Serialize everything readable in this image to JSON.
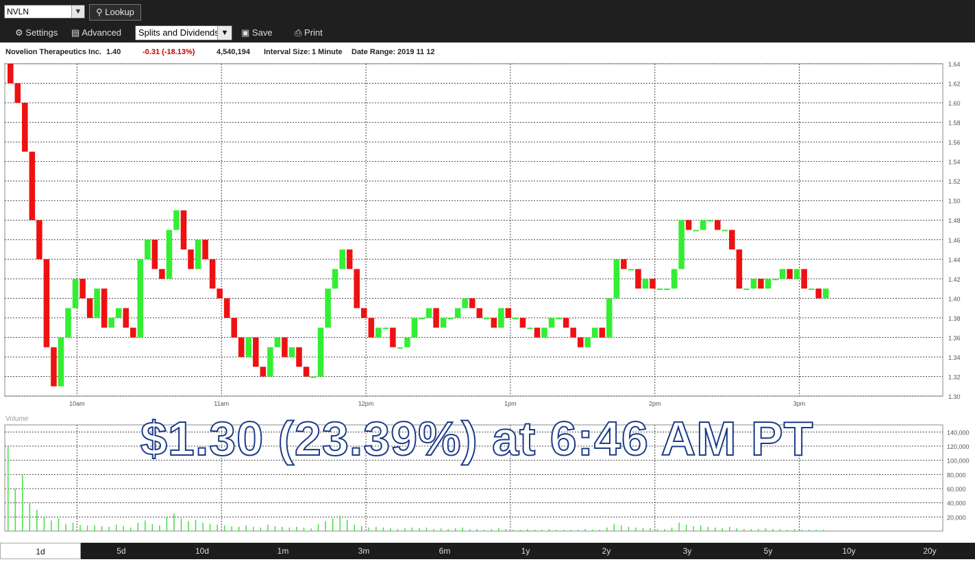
{
  "toolbar": {
    "symbol_value": "NVLN",
    "lookup_label": "Lookup",
    "settings_label": "Settings",
    "advanced_label": "Advanced",
    "splits_label": "Splits and Dividends",
    "save_label": "Save",
    "print_label": "Print"
  },
  "info": {
    "company": "Novelion Therapeutics Inc.",
    "price": "1.40",
    "change": "-0.31 (-18.13%)",
    "volume": "4,540,194",
    "interval_label": "Interval Size:",
    "interval_value": "1 Minute",
    "date_label": "Date Range:",
    "date_value": "2019 11 12"
  },
  "overlay": "$1.30 (23.39%) at 6:46 AM PT",
  "volume_label": "Volume",
  "ranges": [
    "1d",
    "5d",
    "10d",
    "1m",
    "3m",
    "6m",
    "1y",
    "2y",
    "3y",
    "5y",
    "10y",
    "20y"
  ],
  "active_range": "1d",
  "colors": {
    "up": "#33ee33",
    "down": "#ee1111",
    "grid": "#444444",
    "volume": "#44dd44"
  },
  "chart_data": {
    "type": "candlestick",
    "x_ticks": [
      "10am",
      "11am",
      "12pm",
      "1pm",
      "2pm",
      "3pm"
    ],
    "y_ticks": [
      "1.30",
      "1.32",
      "1.34",
      "1.36",
      "1.38",
      "1.40",
      "1.42",
      "1.44",
      "1.46",
      "1.48",
      "1.50",
      "1.52",
      "1.54",
      "1.56",
      "1.58",
      "1.60",
      "1.62",
      "1.64"
    ],
    "ylim": [
      1.3,
      1.64
    ],
    "volume_ticks": [
      "20,000",
      "40,000",
      "60,000",
      "80,000",
      "100,000",
      "120,000",
      "140,000"
    ],
    "volume_ylim": [
      0,
      150000
    ],
    "close": [
      1.62,
      1.6,
      1.55,
      1.48,
      1.44,
      1.35,
      1.31,
      1.36,
      1.39,
      1.42,
      1.4,
      1.38,
      1.41,
      1.37,
      1.38,
      1.39,
      1.37,
      1.36,
      1.44,
      1.46,
      1.43,
      1.42,
      1.47,
      1.49,
      1.45,
      1.43,
      1.46,
      1.44,
      1.41,
      1.4,
      1.38,
      1.36,
      1.34,
      1.36,
      1.33,
      1.32,
      1.35,
      1.36,
      1.34,
      1.35,
      1.33,
      1.32,
      1.32,
      1.37,
      1.41,
      1.43,
      1.45,
      1.43,
      1.39,
      1.38,
      1.36,
      1.37,
      1.37,
      1.35,
      1.35,
      1.36,
      1.38,
      1.38,
      1.39,
      1.37,
      1.38,
      1.38,
      1.39,
      1.4,
      1.39,
      1.38,
      1.38,
      1.37,
      1.39,
      1.38,
      1.38,
      1.37,
      1.37,
      1.36,
      1.37,
      1.38,
      1.38,
      1.37,
      1.36,
      1.35,
      1.36,
      1.37,
      1.36,
      1.4,
      1.44,
      1.43,
      1.43,
      1.41,
      1.42,
      1.41,
      1.41,
      1.41,
      1.43,
      1.48,
      1.47,
      1.47,
      1.48,
      1.48,
      1.47,
      1.47,
      1.45,
      1.41,
      1.41,
      1.42,
      1.41,
      1.42,
      1.42,
      1.43,
      1.42,
      1.43,
      1.41,
      1.41,
      1.4,
      1.41
    ],
    "volume": [
      120000,
      60000,
      80000,
      40000,
      30000,
      20000,
      15000,
      18000,
      10000,
      12000,
      9000,
      8000,
      8000,
      7000,
      6000,
      9000,
      7000,
      5000,
      12000,
      15000,
      10000,
      8000,
      20000,
      25000,
      18000,
      14000,
      16000,
      12000,
      10000,
      9000,
      8000,
      7000,
      6000,
      8000,
      6000,
      5000,
      9000,
      7000,
      6000,
      5000,
      6000,
      5000,
      4000,
      10000,
      14000,
      18000,
      22000,
      16000,
      9000,
      7000,
      5000,
      6000,
      5000,
      4000,
      3000,
      4000,
      5000,
      4000,
      5000,
      3000,
      4000,
      3000,
      4000,
      5000,
      3000,
      3000,
      2000,
      3000,
      4000,
      3000,
      2000,
      2000,
      3000,
      2000,
      2000,
      3000,
      2000,
      2000,
      2000,
      2000,
      3000,
      2000,
      2000,
      5000,
      10000,
      8000,
      6000,
      5000,
      4000,
      4000,
      3000,
      3000,
      5000,
      12000,
      9000,
      7000,
      8000,
      6000,
      5000,
      4000,
      6000,
      4000,
      3000,
      3000,
      3000,
      4000,
      3000,
      3000,
      2000,
      3000,
      2000,
      2000,
      2000,
      2000
    ]
  }
}
